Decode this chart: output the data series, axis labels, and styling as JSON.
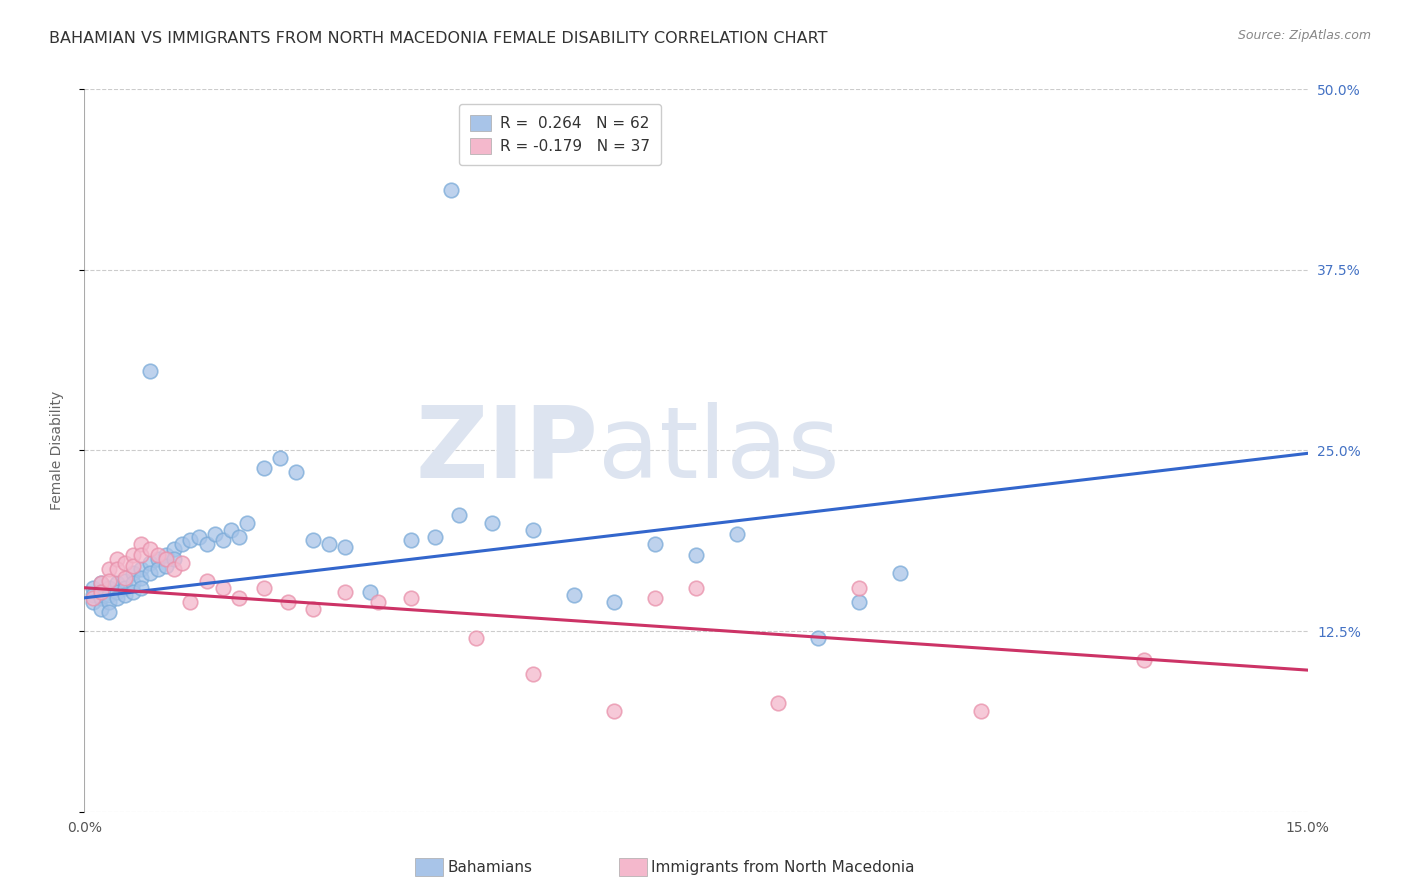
{
  "title": "BAHAMIAN VS IMMIGRANTS FROM NORTH MACEDONIA FEMALE DISABILITY CORRELATION CHART",
  "source": "Source: ZipAtlas.com",
  "ylabel": "Female Disability",
  "xlim": [
    0.0,
    0.15
  ],
  "ylim": [
    0.0,
    0.5
  ],
  "xticks": [
    0.0,
    0.05,
    0.1,
    0.15
  ],
  "xticklabels": [
    "0.0%",
    "",
    "",
    "15.0%"
  ],
  "yticks": [
    0.0,
    0.125,
    0.25,
    0.375,
    0.5
  ],
  "yticklabels": [
    "",
    "12.5%",
    "25.0%",
    "37.5%",
    "50.0%"
  ],
  "legend_blue_label_r": "R = ",
  "legend_blue_r_val": "0.264",
  "legend_blue_n": "  N = 62",
  "legend_pink_label_r": "R = ",
  "legend_pink_r_val": "-0.179",
  "legend_pink_n": "  N = 37",
  "legend_blue_color": "#a8c4e8",
  "legend_pink_color": "#f4b8cc",
  "trend_blue_color": "#3366cc",
  "trend_pink_color": "#cc3366",
  "scatter_blue_color": "#a8c4e8",
  "scatter_pink_color": "#f4b8cc",
  "scatter_blue_edge": "#7aaad8",
  "scatter_pink_edge": "#e890aa",
  "background_color": "#ffffff",
  "grid_color": "#cccccc",
  "watermark_top": "ZIP",
  "watermark_bot": "atlas",
  "right_ytick_color": "#4472c4",
  "watermark_color": "#dde4f0",
  "title_fontsize": 11.5,
  "axis_label_fontsize": 10,
  "tick_fontsize": 10,
  "source_fontsize": 9,
  "blue_trend_x0": 0.0,
  "blue_trend_x1": 0.15,
  "blue_trend_y0": 0.148,
  "blue_trend_y1": 0.248,
  "pink_trend_x0": 0.0,
  "pink_trend_x1": 0.15,
  "pink_trend_y0": 0.155,
  "pink_trend_y1": 0.098,
  "blue_x": [
    0.001,
    0.001,
    0.001,
    0.002,
    0.002,
    0.002,
    0.002,
    0.003,
    0.003,
    0.003,
    0.003,
    0.004,
    0.004,
    0.004,
    0.005,
    0.005,
    0.005,
    0.006,
    0.006,
    0.006,
    0.007,
    0.007,
    0.007,
    0.008,
    0.008,
    0.009,
    0.009,
    0.01,
    0.01,
    0.011,
    0.011,
    0.012,
    0.013,
    0.014,
    0.015,
    0.016,
    0.017,
    0.018,
    0.019,
    0.02,
    0.022,
    0.024,
    0.026,
    0.028,
    0.03,
    0.032,
    0.035,
    0.04,
    0.043,
    0.046,
    0.05,
    0.055,
    0.06,
    0.065,
    0.07,
    0.075,
    0.08,
    0.09,
    0.095,
    0.1,
    0.008,
    0.045
  ],
  "blue_y": [
    0.155,
    0.15,
    0.145,
    0.158,
    0.152,
    0.148,
    0.14,
    0.155,
    0.15,
    0.145,
    0.138,
    0.158,
    0.152,
    0.148,
    0.16,
    0.155,
    0.15,
    0.165,
    0.158,
    0.152,
    0.168,
    0.162,
    0.155,
    0.172,
    0.165,
    0.175,
    0.168,
    0.178,
    0.17,
    0.182,
    0.175,
    0.185,
    0.188,
    0.19,
    0.185,
    0.192,
    0.188,
    0.195,
    0.19,
    0.2,
    0.238,
    0.245,
    0.235,
    0.188,
    0.185,
    0.183,
    0.152,
    0.188,
    0.19,
    0.205,
    0.2,
    0.195,
    0.15,
    0.145,
    0.185,
    0.178,
    0.192,
    0.12,
    0.145,
    0.165,
    0.305,
    0.43
  ],
  "pink_x": [
    0.001,
    0.002,
    0.002,
    0.003,
    0.003,
    0.004,
    0.004,
    0.005,
    0.005,
    0.006,
    0.006,
    0.007,
    0.007,
    0.008,
    0.009,
    0.01,
    0.011,
    0.012,
    0.013,
    0.015,
    0.017,
    0.019,
    0.022,
    0.025,
    0.028,
    0.032,
    0.036,
    0.04,
    0.048,
    0.055,
    0.065,
    0.07,
    0.075,
    0.085,
    0.095,
    0.11,
    0.13
  ],
  "pink_y": [
    0.148,
    0.158,
    0.152,
    0.168,
    0.16,
    0.175,
    0.168,
    0.172,
    0.162,
    0.178,
    0.17,
    0.185,
    0.178,
    0.182,
    0.178,
    0.175,
    0.168,
    0.172,
    0.145,
    0.16,
    0.155,
    0.148,
    0.155,
    0.145,
    0.14,
    0.152,
    0.145,
    0.148,
    0.12,
    0.095,
    0.07,
    0.148,
    0.155,
    0.075,
    0.155,
    0.07,
    0.105
  ]
}
